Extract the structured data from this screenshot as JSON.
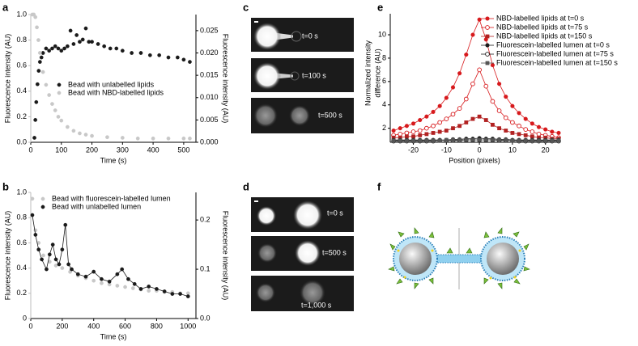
{
  "chart_data": [
    {
      "type": "scatter",
      "xlabel": "Time (s)",
      "ylabel": "Fluorescence intensity (AU)",
      "y2label": "Fluorescence intensity (AU)",
      "xlim": [
        0,
        540
      ],
      "xticks": [
        0,
        100,
        200,
        300,
        400,
        500
      ],
      "ylim": [
        0,
        1.0
      ],
      "yticks": [
        {
          "value": 0,
          "label": "0.0"
        },
        0.2,
        0.4,
        0.6,
        0.8,
        {
          "value": 1.0,
          "label": "1.0"
        }
      ],
      "ycolor": "#bdbdbd",
      "y2lim": [
        0,
        0.0286
      ],
      "y2ticks": [
        {
          "value": 0,
          "label": "0.000"
        },
        0.005,
        {
          "value": 0.01,
          "label": "0.010"
        },
        0.015,
        {
          "value": 0.02,
          "label": "0.020"
        },
        0.025
      ],
      "legend": "center-left",
      "series": [
        {
          "name": "Bead with unlabelled lipids",
          "color": "#1a1a1a",
          "axis": "y2",
          "marker": "circle",
          "line": false,
          "x": [
            12,
            15,
            18,
            22,
            26,
            30,
            35,
            40,
            50,
            60,
            70,
            80,
            90,
            100,
            110,
            120,
            130,
            140,
            150,
            160,
            170,
            180,
            190,
            200,
            220,
            240,
            260,
            280,
            300,
            330,
            360,
            390,
            420,
            450,
            480,
            500,
            520
          ],
          "values": [
            0.001,
            0.005,
            0.009,
            0.013,
            0.016,
            0.018,
            0.019,
            0.02,
            0.021,
            0.0205,
            0.021,
            0.0215,
            0.021,
            0.0205,
            0.021,
            0.0215,
            0.025,
            0.022,
            0.024,
            0.0225,
            0.023,
            0.0255,
            0.0225,
            0.0225,
            0.022,
            0.0215,
            0.021,
            0.021,
            0.0205,
            0.02,
            0.02,
            0.0195,
            0.0195,
            0.019,
            0.019,
            0.0185,
            0.018
          ]
        },
        {
          "name": "Bead with NBD-labelled lipids",
          "color": "#c8c8c8",
          "marker": "circle",
          "line": false,
          "x": [
            5,
            10,
            15,
            20,
            25,
            30,
            40,
            50,
            60,
            70,
            80,
            90,
            100,
            120,
            140,
            160,
            180,
            200,
            250,
            300,
            350,
            400,
            450,
            500,
            520
          ],
          "values": [
            1.0,
            1.0,
            0.98,
            0.9,
            0.8,
            0.7,
            0.55,
            0.45,
            0.37,
            0.3,
            0.25,
            0.2,
            0.17,
            0.12,
            0.09,
            0.07,
            0.06,
            0.05,
            0.04,
            0.035,
            0.03,
            0.03,
            0.03,
            0.03,
            0.03
          ]
        }
      ]
    },
    {
      "type": "scatter",
      "xlabel": "Time (s)",
      "ylabel": "Fluorescence intensity (AU)",
      "y2label": "Fluorescence intensity (AU)",
      "xlim": [
        0,
        1050
      ],
      "xticks": [
        0,
        200,
        400,
        600,
        800,
        1000
      ],
      "ylim": [
        0,
        1.0
      ],
      "yticks": [
        0,
        0.2,
        0.4,
        0.6,
        0.8,
        {
          "value": 1.0,
          "label": "1.0"
        }
      ],
      "ycolor": "#bdbdbd",
      "y2lim": [
        0,
        0.256
      ],
      "y2ticks": [
        {
          "value": 0,
          "label": "0.0"
        },
        0.1,
        0.2
      ],
      "legend": "upper-left",
      "series": [
        {
          "name": "Bead with fluorescein-labelled lumen",
          "color": "#c8c8c8",
          "marker": "circle",
          "line": false,
          "x": [
            10,
            30,
            50,
            80,
            120,
            160,
            200,
            250,
            300,
            350,
            400,
            450,
            500,
            550,
            600,
            650,
            700,
            750,
            800,
            850,
            900,
            950,
            1000
          ],
          "values": [
            0.95,
            0.7,
            0.6,
            0.5,
            0.45,
            0.42,
            0.4,
            0.37,
            0.34,
            0.32,
            0.3,
            0.28,
            0.27,
            0.26,
            0.25,
            0.24,
            0.23,
            0.22,
            0.22,
            0.21,
            0.21,
            0.2,
            0.2
          ]
        },
        {
          "name": "Bead with unlabelled lumen",
          "color": "#1a1a1a",
          "axis": "y2",
          "marker": "circle",
          "line": true,
          "x": [
            10,
            30,
            50,
            70,
            100,
            120,
            140,
            160,
            180,
            200,
            220,
            240,
            260,
            300,
            350,
            400,
            450,
            500,
            550,
            580,
            620,
            660,
            700,
            750,
            800,
            850,
            900,
            950,
            1000
          ],
          "values": [
            0.21,
            0.17,
            0.14,
            0.12,
            0.1,
            0.13,
            0.15,
            0.12,
            0.11,
            0.14,
            0.19,
            0.11,
            0.1,
            0.09,
            0.085,
            0.095,
            0.08,
            0.075,
            0.09,
            0.1,
            0.08,
            0.07,
            0.06,
            0.065,
            0.06,
            0.055,
            0.05,
            0.05,
            0.045
          ]
        }
      ]
    },
    {
      "type": "line",
      "xlabel": "Position (pixels)",
      "ylabel_lines": [
        "Normalized intensity",
        "difference (AU)"
      ],
      "xlim": [
        -27,
        24
      ],
      "xticks": [
        -20,
        -10,
        0,
        10,
        20
      ],
      "ylim": [
        0.8,
        11.8
      ],
      "yticks": [
        2,
        4,
        6,
        8,
        10
      ],
      "ycolor": "#000000",
      "legend": "upper-right",
      "x": [
        -26,
        -24,
        -22,
        -20,
        -18,
        -16,
        -14,
        -12,
        -10,
        -8,
        -6,
        -4,
        -2,
        0,
        2,
        4,
        6,
        8,
        10,
        12,
        14,
        16,
        18,
        20,
        22,
        24
      ],
      "series": [
        {
          "name": "NBD-labelled lipids at t=0 s",
          "color": "#d7191c",
          "marker": "circle",
          "line": true,
          "values": [
            1.8,
            2.0,
            2.2,
            2.4,
            2.7,
            3.0,
            3.4,
            3.9,
            4.6,
            5.5,
            6.7,
            8.3,
            10.0,
            11.3,
            9.6,
            7.4,
            5.8,
            4.7,
            3.9,
            3.3,
            2.8,
            2.4,
            2.1,
            1.9,
            1.7,
            1.6
          ]
        },
        {
          "name": "NBD-labelled lipids at t=75 s",
          "color": "#d7191c",
          "marker": "open-circle",
          "line": true,
          "values": [
            1.4,
            1.5,
            1.6,
            1.7,
            1.8,
            2.0,
            2.2,
            2.5,
            2.8,
            3.2,
            3.7,
            4.5,
            5.8,
            7.0,
            5.6,
            4.3,
            3.5,
            2.9,
            2.5,
            2.2,
            1.9,
            1.7,
            1.5,
            1.4,
            1.3,
            1.2
          ]
        },
        {
          "name": "NBD-labelled lipids at t=150 s",
          "color": "#b22222",
          "marker": "square",
          "line": true,
          "values": [
            1.2,
            1.2,
            1.3,
            1.3,
            1.4,
            1.5,
            1.6,
            1.7,
            1.8,
            2.0,
            2.2,
            2.5,
            2.8,
            3.0,
            2.7,
            2.3,
            2.0,
            1.8,
            1.6,
            1.5,
            1.4,
            1.3,
            1.2,
            1.2,
            1.1,
            1.1
          ]
        },
        {
          "name": "Fluorescein-labelled lumen at t=0 s",
          "color": "#1a1a1a",
          "marker": "circle",
          "line": true,
          "values": [
            1.0,
            1.0,
            1.0,
            1.0,
            1.0,
            1.0,
            1.0,
            1.0,
            1.0,
            1.05,
            1.05,
            1.1,
            1.1,
            1.15,
            1.1,
            1.1,
            1.05,
            1.05,
            1.0,
            1.0,
            1.0,
            1.0,
            1.0,
            1.0,
            1.0,
            1.0
          ]
        },
        {
          "name": "Fluorescein-labelled lumen at t=75 s",
          "color": "#1a1a1a",
          "marker": "open-circle",
          "line": true,
          "values": [
            0.9,
            0.9,
            0.9,
            0.9,
            0.9,
            0.9,
            0.9,
            0.95,
            0.95,
            0.95,
            0.95,
            1.0,
            1.0,
            1.0,
            1.0,
            1.0,
            0.95,
            0.95,
            0.95,
            0.9,
            0.9,
            0.9,
            0.9,
            0.9,
            0.9,
            0.9
          ]
        },
        {
          "name": "Fluorescein-labelled lumen at t=150 s",
          "color": "#555555",
          "marker": "square",
          "line": true,
          "values": [
            0.95,
            0.95,
            0.95,
            0.95,
            0.95,
            0.95,
            0.95,
            0.95,
            1.0,
            1.0,
            1.0,
            1.0,
            1.0,
            1.0,
            1.0,
            1.0,
            1.0,
            1.0,
            0.95,
            0.95,
            0.95,
            0.95,
            0.95,
            0.95,
            0.95,
            0.95
          ]
        }
      ]
    }
  ],
  "panels": [
    "a",
    "b",
    "c",
    "d",
    "e",
    "f"
  ],
  "micrographs": [
    {
      "labels": [
        "t=0 s",
        "t=100 s",
        "t=500 s"
      ]
    },
    {
      "labels": [
        "t=0 s",
        "t=500 s",
        "t=1,000 s"
      ]
    }
  ]
}
